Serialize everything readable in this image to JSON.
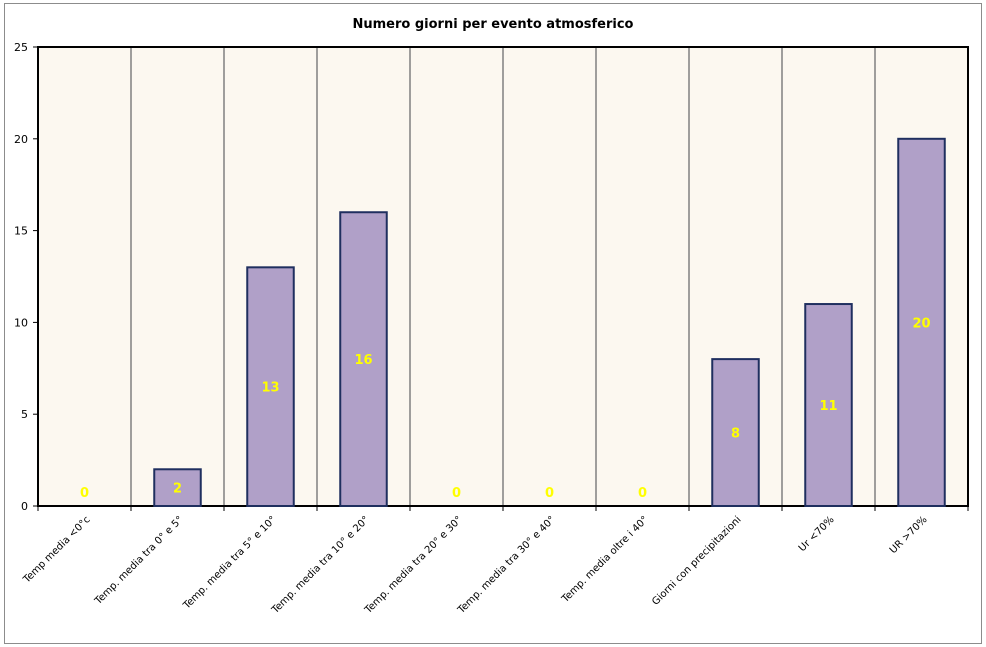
{
  "chart_data": {
    "type": "bar",
    "title": "Numero giorni per evento atmosferico",
    "xlabel": "",
    "ylabel": "",
    "categories": [
      "Temp media <0°c",
      "Temp. media tra 0° e 5°",
      "Temp. media tra 5° e 10°",
      "Temp. media tra 10° e 20°",
      "Temp. media tra 20° e 30°",
      "Temp. media tra 30° e 40°",
      "Temp. media oltre i 40°",
      "Giorni con precipitazioni",
      "Ur <70%",
      "UR >70%"
    ],
    "values": [
      0,
      2,
      13,
      16,
      0,
      0,
      0,
      8,
      11,
      20
    ],
    "ylim": [
      0,
      25
    ],
    "yticks": [
      0,
      5,
      10,
      15,
      20,
      25
    ],
    "grid": "vertical",
    "legend": "none",
    "colors": {
      "bar_fill": "#b0a0c8",
      "bar_stroke": "#1f2f5f",
      "plot_bg": "#fcf8f0",
      "data_label": "#ffff00",
      "grid": "#808080"
    }
  }
}
